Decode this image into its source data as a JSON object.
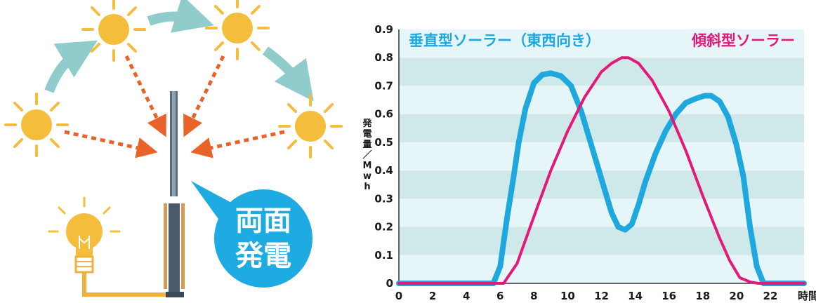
{
  "illustration": {
    "bubble_line1": "両面",
    "bubble_line2": "発電",
    "colors": {
      "sun": "#f5bd3c",
      "sun_ray": "#f5bd3c",
      "arrow_orange": "#e8622a",
      "arc_arrow": "#8fcccb",
      "bubble": "#1eabe2",
      "wire": "#f2b23a",
      "panel": "#4a5a6a"
    }
  },
  "chart_data": {
    "type": "line",
    "xlabel": "時間",
    "ylabel": "発電量／Mwh",
    "xlim": [
      0,
      24
    ],
    "ylim": [
      0,
      0.9
    ],
    "xticks": [
      "0",
      "2",
      "4",
      "6",
      "8",
      "10",
      "12",
      "14",
      "16",
      "18",
      "20",
      "22"
    ],
    "yticks": [
      "0",
      "0.1",
      "0.2",
      "0.3",
      "0.4",
      "0.5",
      "0.6",
      "0.7",
      "0.8",
      "0.9"
    ],
    "grid": "horizontal bands",
    "series": [
      {
        "name": "垂直型ソーラー（東西向き）",
        "color": "#1fa8dd",
        "x": [
          0,
          5.6,
          6.0,
          6.4,
          6.8,
          7.1,
          7.5,
          8.0,
          8.5,
          9.0,
          9.6,
          10.2,
          10.8,
          11.4,
          12.0,
          12.6,
          13.0,
          13.4,
          13.8,
          14.2,
          14.6,
          15.2,
          15.8,
          16.4,
          17.0,
          17.6,
          18.1,
          18.5,
          19.0,
          19.5,
          20.0,
          20.4,
          20.8,
          21.2,
          21.6,
          24
        ],
        "y": [
          0,
          0,
          0.06,
          0.23,
          0.38,
          0.5,
          0.62,
          0.71,
          0.74,
          0.745,
          0.735,
          0.7,
          0.61,
          0.49,
          0.37,
          0.25,
          0.2,
          0.19,
          0.21,
          0.28,
          0.36,
          0.46,
          0.54,
          0.6,
          0.64,
          0.655,
          0.665,
          0.665,
          0.645,
          0.59,
          0.49,
          0.38,
          0.2,
          0.06,
          0,
          0
        ]
      },
      {
        "name": "傾斜型ソーラー",
        "color": "#e3197a",
        "x": [
          0,
          6.2,
          7.0,
          7.6,
          8.2,
          9.0,
          10.0,
          11.0,
          12.0,
          12.6,
          13.2,
          13.6,
          14.2,
          15.0,
          16.0,
          17.0,
          18.0,
          19.0,
          19.6,
          20.2,
          20.8,
          21.3,
          24
        ],
        "y": [
          0,
          0,
          0.07,
          0.17,
          0.27,
          0.4,
          0.54,
          0.66,
          0.75,
          0.78,
          0.8,
          0.8,
          0.78,
          0.72,
          0.61,
          0.47,
          0.31,
          0.16,
          0.08,
          0.02,
          0.005,
          0,
          0
        ]
      }
    ]
  }
}
